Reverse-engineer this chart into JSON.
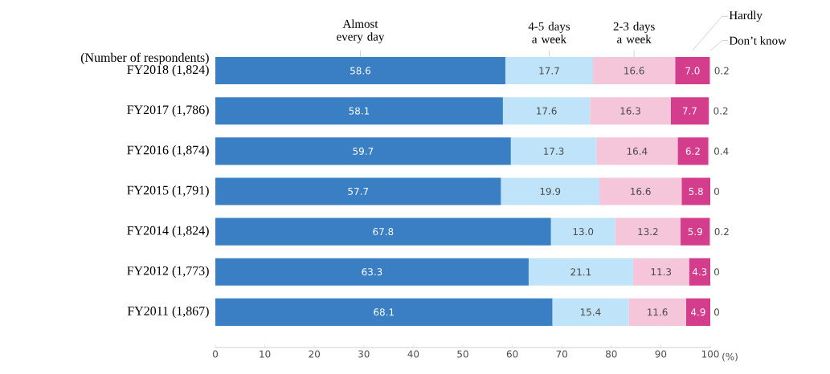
{
  "chart_data": {
    "type": "bar",
    "orientation": "horizontal",
    "stacked": true,
    "ylabel": "(Number of respondents)",
    "xlabel": "(%)",
    "categories": [
      "FY2018 (1,824)",
      "FY2017 (1,786)",
      "FY2016 (1,874)",
      "FY2015 (1,791)",
      "FY2014 (1,824)",
      "FY2012 (1,773)",
      "FY2011 (1,867)"
    ],
    "series": [
      {
        "name": "Almost every day",
        "color": "#3a7fc4",
        "values": [
          58.6,
          58.1,
          59.7,
          57.7,
          67.8,
          63.3,
          68.1
        ],
        "value_labels": [
          "58.6",
          "58.1",
          "59.7",
          "57.7",
          "67.8",
          "63.3",
          "68.1"
        ]
      },
      {
        "name": "4-5 days a week",
        "color": "#bfe3f8",
        "values": [
          17.7,
          17.6,
          17.3,
          19.9,
          13.0,
          21.1,
          15.4
        ],
        "value_labels": [
          "17.7",
          "17.6",
          "17.3",
          "19.9",
          "13.0",
          "21.1",
          "15.4"
        ]
      },
      {
        "name": "2-3 days a week",
        "color": "#f5c5da",
        "values": [
          16.6,
          16.3,
          16.4,
          16.6,
          13.2,
          11.3,
          11.6
        ],
        "value_labels": [
          "16.6",
          "16.3",
          "16.4",
          "16.6",
          "13.2",
          "11.3",
          "11.6"
        ]
      },
      {
        "name": "Hardly",
        "color": "#d43c8c",
        "values": [
          7.0,
          7.7,
          6.2,
          5.8,
          5.9,
          4.3,
          4.9
        ],
        "value_labels": [
          "7.0",
          "7.7",
          "6.2",
          "5.8",
          "5.9",
          "4.3",
          "4.9"
        ]
      },
      {
        "name": "Don’t know",
        "color": "#f0f0f0",
        "values": [
          0.2,
          0.2,
          0.4,
          0,
          0.2,
          0,
          0
        ],
        "value_labels": [
          "0.2",
          "0.2",
          "0.4",
          "0",
          "0.2",
          "0",
          "0"
        ]
      }
    ],
    "data_labels": true,
    "legend": "top",
    "xlim": [
      0,
      100.1
    ],
    "xticks": [
      0,
      10,
      20,
      30,
      40,
      50,
      60,
      70,
      80,
      90,
      100
    ],
    "grid": false
  }
}
